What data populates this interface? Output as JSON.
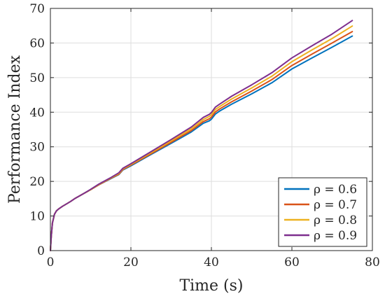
{
  "chart_data": {
    "type": "line",
    "title": "",
    "xlabel": "Time (s)",
    "ylabel": "Performance Index",
    "xlim": [
      0,
      80
    ],
    "ylim": [
      0,
      70
    ],
    "xticks": [
      0,
      20,
      40,
      60,
      80
    ],
    "yticks": [
      0,
      10,
      20,
      30,
      40,
      50,
      60,
      70
    ],
    "grid": true,
    "legend_position": "bottom-right",
    "series": [
      {
        "name": "ρ = 0.6",
        "color": "#0072BD",
        "x": [
          0,
          0.2,
          0.5,
          1,
          1.5,
          2,
          3,
          4,
          5,
          6,
          8,
          10,
          12,
          15,
          17,
          18,
          20,
          25,
          30,
          35,
          38,
          39.5,
          40,
          41,
          42,
          45,
          50,
          55,
          60,
          65,
          70,
          75
        ],
        "y": [
          0,
          4,
          8,
          10.5,
          11.5,
          12,
          12.8,
          13.5,
          14.2,
          15,
          16.3,
          17.6,
          19,
          20.8,
          22,
          23.3,
          24.5,
          27.8,
          31,
          34.3,
          36.8,
          37.5,
          38,
          39.5,
          40.3,
          42.3,
          45.3,
          48.5,
          52.5,
          55.7,
          58.8,
          62
        ]
      },
      {
        "name": "ρ = 0.7",
        "color": "#D95319",
        "x": [
          0,
          0.2,
          0.5,
          1,
          1.5,
          2,
          3,
          4,
          5,
          6,
          8,
          10,
          12,
          15,
          17,
          18,
          20,
          25,
          30,
          35,
          38,
          39.5,
          40,
          41,
          42,
          45,
          50,
          55,
          60,
          65,
          70,
          75
        ],
        "y": [
          0,
          4,
          8,
          10.5,
          11.5,
          12,
          12.8,
          13.5,
          14.2,
          15,
          16.3,
          17.6,
          19,
          20.9,
          22.1,
          23.4,
          24.7,
          28,
          31.3,
          34.7,
          37.3,
          38.1,
          38.6,
          40.1,
          40.9,
          43,
          46.1,
          49.4,
          53.5,
          56.8,
          60,
          63.3
        ]
      },
      {
        "name": "ρ = 0.8",
        "color": "#EDB120",
        "x": [
          0,
          0.2,
          0.5,
          1,
          1.5,
          2,
          3,
          4,
          5,
          6,
          8,
          10,
          12,
          15,
          17,
          18,
          20,
          25,
          30,
          35,
          38,
          39.5,
          40,
          41,
          42,
          45,
          50,
          55,
          60,
          65,
          70,
          75
        ],
        "y": [
          0,
          4,
          8,
          10.5,
          11.5,
          12,
          12.8,
          13.5,
          14.2,
          15,
          16.3,
          17.6,
          19.1,
          21,
          22.3,
          23.6,
          24.9,
          28.3,
          31.7,
          35.2,
          37.9,
          38.8,
          39.3,
          40.8,
          41.6,
          43.8,
          47,
          50.4,
          54.6,
          58,
          61.3,
          64.9
        ]
      },
      {
        "name": "ρ = 0.9",
        "color": "#7E2F8E",
        "x": [
          0,
          0.2,
          0.5,
          1,
          1.5,
          2,
          3,
          4,
          5,
          6,
          8,
          10,
          12,
          15,
          17,
          18,
          20,
          25,
          30,
          35,
          38,
          39.5,
          40,
          41,
          42,
          45,
          50,
          55,
          60,
          65,
          70,
          75
        ],
        "y": [
          0,
          4,
          8,
          10.5,
          11.5,
          12,
          12.8,
          13.5,
          14.2,
          15,
          16.3,
          17.7,
          19.2,
          21.1,
          22.5,
          23.8,
          25.1,
          28.6,
          32.1,
          35.7,
          38.5,
          39.4,
          39.9,
          41.5,
          42.3,
          44.6,
          47.9,
          51.4,
          55.7,
          59.2,
          62.6,
          66.5
        ]
      }
    ]
  }
}
